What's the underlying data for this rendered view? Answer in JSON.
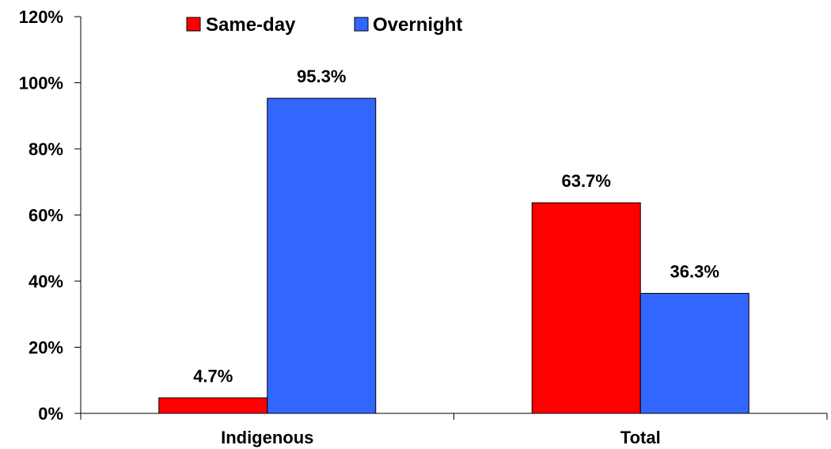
{
  "chart_data": {
    "type": "bar",
    "categories": [
      "Indigenous",
      "Total"
    ],
    "series": [
      {
        "name": "Same-day",
        "values": [
          4.7,
          63.7
        ],
        "labels": [
          "4.7%",
          "63.7%"
        ],
        "color": "#ff0000"
      },
      {
        "name": "Overnight",
        "values": [
          95.3,
          36.3
        ],
        "labels": [
          "95.3%",
          "36.3%"
        ],
        "color": "#3366ff"
      }
    ],
    "ylim": [
      0,
      120
    ],
    "yticks": [
      0,
      20,
      40,
      60,
      80,
      100,
      120
    ],
    "ytick_labels": [
      "0%",
      "20%",
      "40%",
      "60%",
      "80%",
      "100%",
      "120%"
    ],
    "legend_position": "top",
    "grid": false
  }
}
